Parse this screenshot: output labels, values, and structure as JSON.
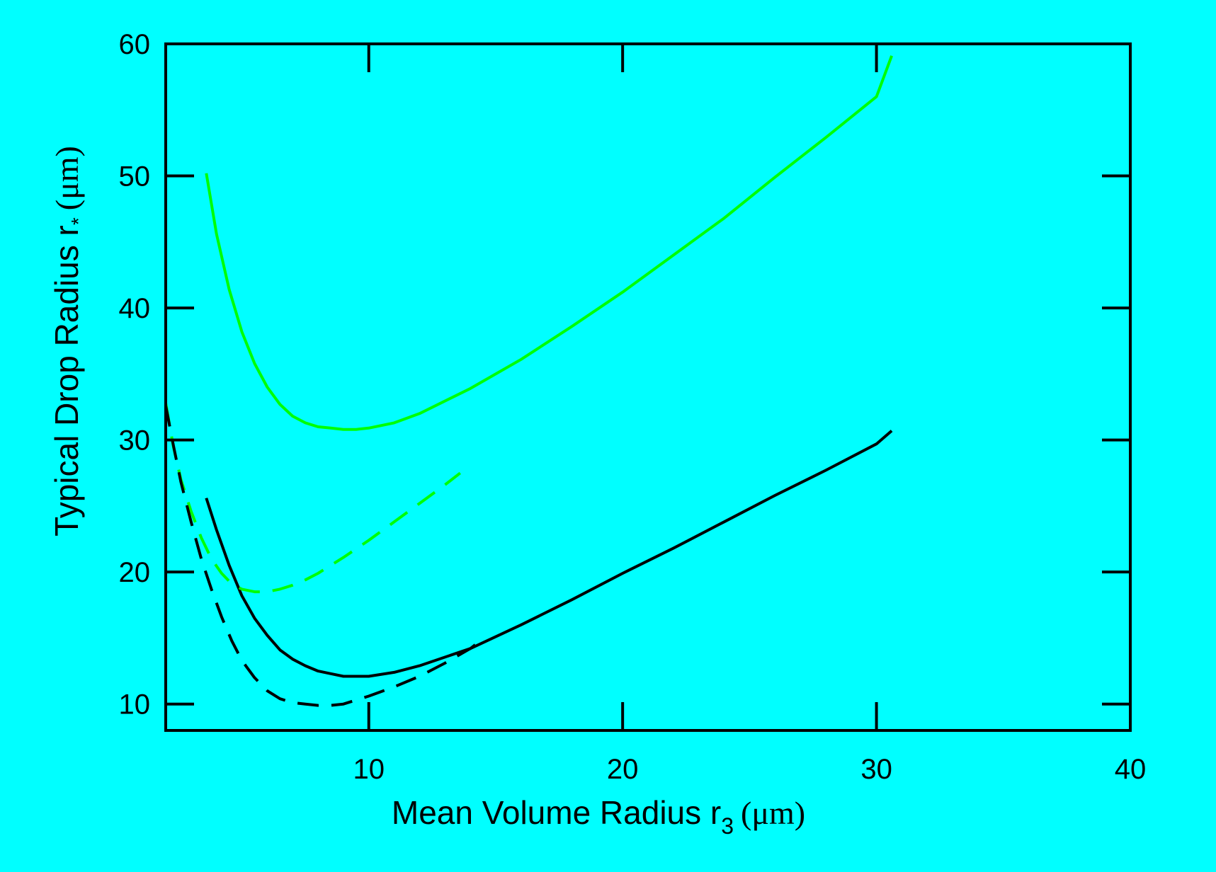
{
  "chart_data": {
    "type": "line",
    "title": "",
    "xlabel": "Mean Volume Radius r",
    "xlabel_subscript": "3",
    "xlabel_unit": "(μm)",
    "ylabel": "Typical Drop Radius r",
    "ylabel_subscript": "*",
    "ylabel_unit": "(μm)",
    "xlim": [
      2,
      40
    ],
    "ylim": [
      8,
      60
    ],
    "xticks": [
      10,
      20,
      30,
      40
    ],
    "yticks": [
      10,
      20,
      30,
      40,
      50,
      60
    ],
    "grid": false,
    "legend": "none",
    "colors": {
      "background": "#00FFFF",
      "green": "#00FF00",
      "black": "#000000"
    },
    "series": [
      {
        "color": "#00FF00",
        "style": "solid",
        "x": [
          3.6,
          4.0,
          4.5,
          5.0,
          5.5,
          6.0,
          6.5,
          7.0,
          7.5,
          8.0,
          8.5,
          9.0,
          9.5,
          10.0,
          11.0,
          12.0,
          14.0,
          16.0,
          18.0,
          20.0,
          22.0,
          24.0,
          26.0,
          28.0,
          30.0,
          30.6
        ],
        "y": [
          50.2,
          45.6,
          41.4,
          38.2,
          35.8,
          34.0,
          32.7,
          31.8,
          31.3,
          31.0,
          30.9,
          30.8,
          30.8,
          30.9,
          31.3,
          32.0,
          33.9,
          36.1,
          38.6,
          41.2,
          44.0,
          46.8,
          49.9,
          52.9,
          56.0,
          59.1
        ]
      },
      {
        "color": "#000000",
        "style": "solid",
        "x": [
          3.6,
          4.0,
          4.5,
          5.0,
          5.5,
          6.0,
          6.5,
          7.0,
          7.5,
          8.0,
          8.5,
          9.0,
          9.5,
          10.0,
          11.0,
          12.0,
          14.0,
          16.0,
          18.0,
          20.0,
          22.0,
          24.0,
          26.0,
          28.0,
          30.0,
          30.6
        ],
        "y": [
          25.6,
          23.2,
          20.5,
          18.2,
          16.5,
          15.2,
          14.1,
          13.4,
          12.9,
          12.5,
          12.3,
          12.1,
          12.1,
          12.1,
          12.4,
          12.9,
          14.2,
          16.0,
          17.9,
          19.9,
          21.8,
          23.8,
          25.8,
          27.7,
          29.7,
          30.7
        ]
      },
      {
        "color": "#00FF00",
        "style": "dashed",
        "x": [
          2.0,
          2.3,
          2.6,
          3.0,
          3.4,
          3.8,
          4.2,
          4.6,
          5.0,
          5.5,
          6.0,
          6.5,
          7.0,
          7.5,
          8.0,
          9.0,
          10.0,
          11.0,
          12.0,
          13.0,
          13.6
        ],
        "y": [
          32.8,
          29.5,
          27.0,
          24.6,
          22.6,
          21.0,
          19.9,
          19.1,
          18.7,
          18.5,
          18.5,
          18.7,
          19.0,
          19.4,
          19.9,
          21.1,
          22.4,
          23.8,
          25.2,
          26.6,
          27.5
        ]
      },
      {
        "color": "#000000",
        "style": "dashed",
        "x": [
          2.0,
          2.3,
          2.6,
          3.0,
          3.4,
          3.8,
          4.2,
          4.6,
          5.0,
          5.5,
          6.0,
          6.5,
          7.0,
          7.5,
          8.0,
          8.5,
          9.0,
          9.5,
          10.0,
          11.0,
          12.0,
          13.0,
          14.0,
          14.2
        ],
        "y": [
          32.6,
          29.6,
          26.8,
          23.8,
          21.0,
          18.7,
          16.6,
          14.8,
          13.3,
          12.0,
          11.0,
          10.4,
          10.1,
          10.0,
          9.9,
          9.9,
          10.0,
          10.3,
          10.6,
          11.3,
          12.1,
          13.1,
          14.2,
          14.5
        ]
      }
    ]
  }
}
